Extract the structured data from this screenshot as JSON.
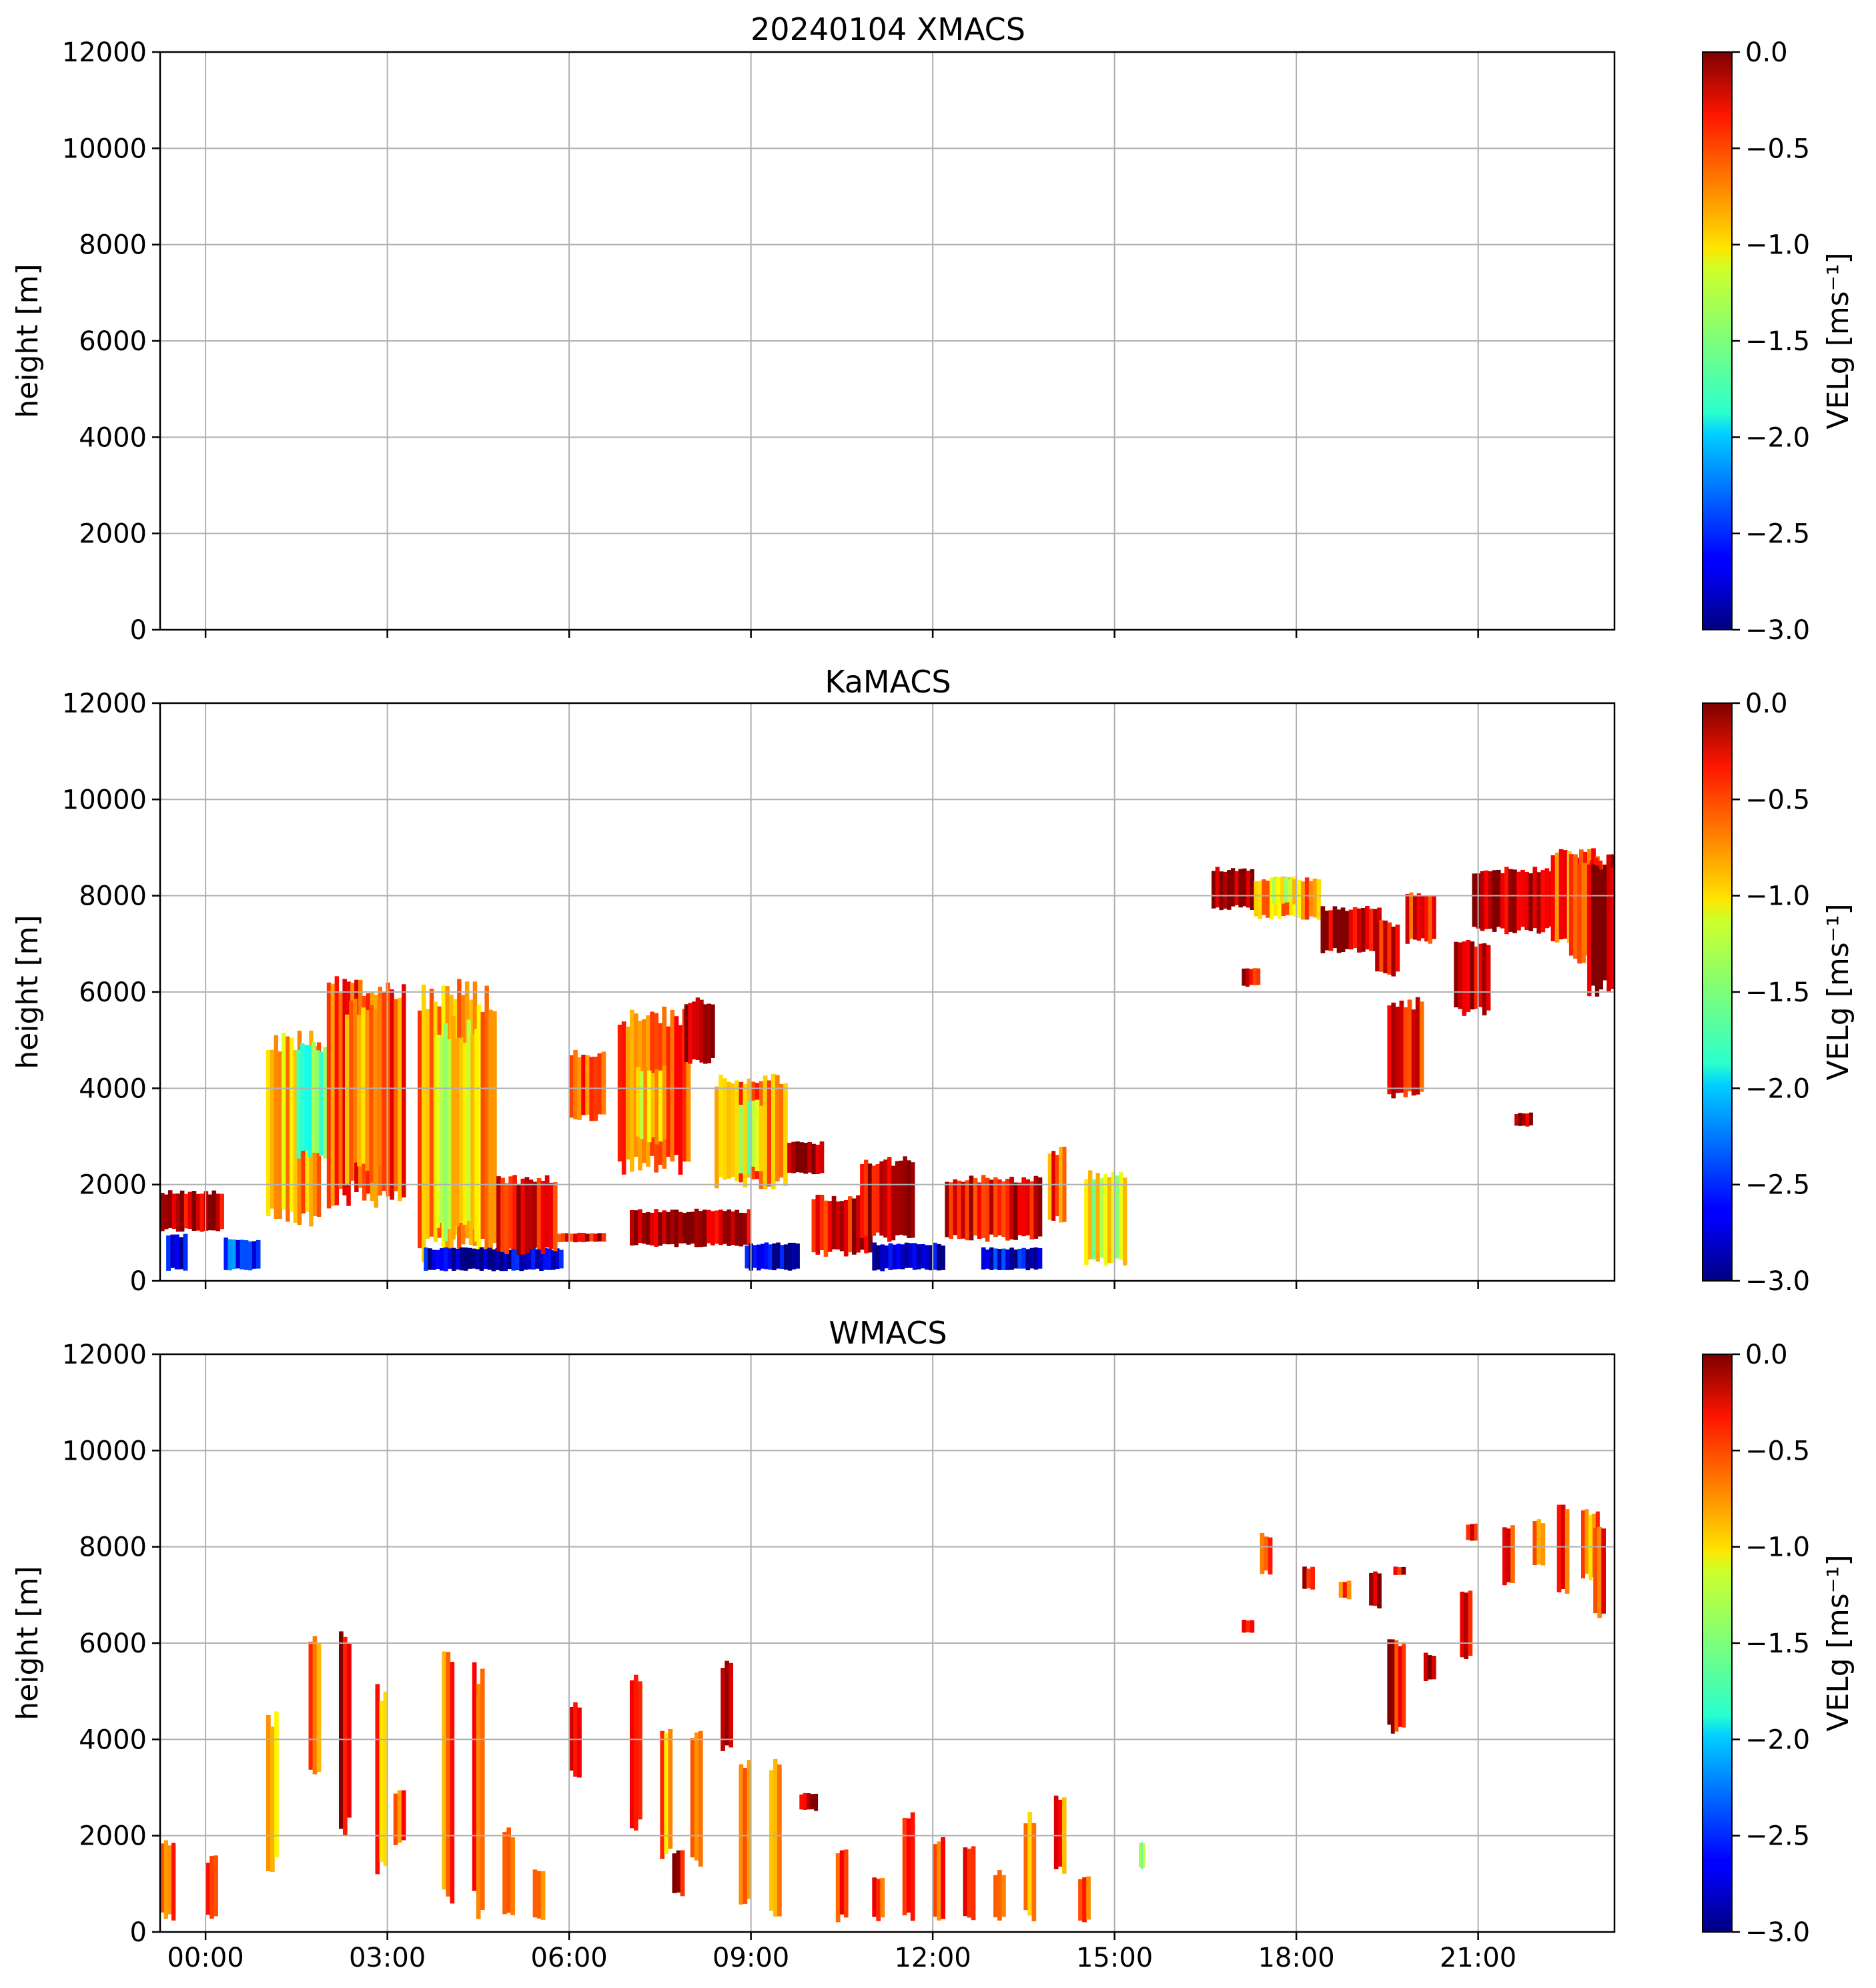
{
  "figure": {
    "colormap": "jet",
    "panels": [
      {
        "title": "20240104 XMACS"
      },
      {
        "title": "KaMACS"
      },
      {
        "title": "WMACS"
      }
    ],
    "colorbar_label": "VELg [ms⁻¹]"
  },
  "chart_data": [
    {
      "type": "heatmap",
      "title": "20240104 XMACS",
      "xlabel": "",
      "ylabel": "height [m]",
      "x_ticks": [
        "00:00",
        "03:00",
        "06:00",
        "09:00",
        "12:00",
        "15:00",
        "18:00",
        "21:00"
      ],
      "x_tick_labels_shown": false,
      "xlim_hours": [
        -0.75,
        23.25
      ],
      "y_ticks": [
        0,
        2000,
        4000,
        6000,
        8000,
        10000,
        12000
      ],
      "ylim": [
        0,
        12000
      ],
      "grid": true,
      "colorbar": {
        "label": "VELg [ms⁻¹]",
        "range": [
          -3.0,
          0.0
        ],
        "ticks": [
          "0.0",
          "−0.5",
          "−1.0",
          "−1.5",
          "−2.0",
          "−2.5",
          "−3.0"
        ]
      },
      "regions": []
    },
    {
      "type": "heatmap",
      "title": "KaMACS",
      "xlabel": "",
      "ylabel": "height [m]",
      "x_ticks": [
        "00:00",
        "03:00",
        "06:00",
        "09:00",
        "12:00",
        "15:00",
        "18:00",
        "21:00"
      ],
      "x_tick_labels_shown": false,
      "xlim_hours": [
        -0.75,
        23.25
      ],
      "y_ticks": [
        0,
        2000,
        4000,
        6000,
        8000,
        10000,
        12000
      ],
      "ylim": [
        0,
        12000
      ],
      "grid": true,
      "colorbar": {
        "label": "VELg [ms⁻¹]",
        "range": [
          -3.0,
          0.0
        ],
        "ticks": [
          "0.0",
          "−0.5",
          "−1.0",
          "−1.5",
          "−2.0",
          "−2.5",
          "−3.0"
        ]
      },
      "regions": [
        {
          "t0": -0.75,
          "t1": 0.3,
          "h0": 1000,
          "h1": 1900,
          "v": -0.2
        },
        {
          "t0": -0.65,
          "t1": -0.3,
          "h0": 200,
          "h1": 1000,
          "v": -2.6
        },
        {
          "t0": 0.3,
          "t1": 0.9,
          "h0": 200,
          "h1": 900,
          "v": -2.4
        },
        {
          "t0": 1.0,
          "t1": 1.9,
          "h0": 1000,
          "h1": 5200,
          "v": -0.9
        },
        {
          "t0": 1.5,
          "t1": 2.0,
          "h0": 2500,
          "h1": 5000,
          "v": -1.7
        },
        {
          "t0": 2.0,
          "t1": 3.3,
          "h0": 1500,
          "h1": 6400,
          "v": -0.6
        },
        {
          "t0": 2.3,
          "t1": 2.9,
          "h0": 2000,
          "h1": 6000,
          "v": -0.9
        },
        {
          "t0": 3.5,
          "t1": 4.8,
          "h0": 300,
          "h1": 6300,
          "v": -0.8
        },
        {
          "t0": 3.8,
          "t1": 4.5,
          "h0": 800,
          "h1": 5500,
          "v": -1.2
        },
        {
          "t0": 3.6,
          "t1": 5.9,
          "h0": 200,
          "h1": 700,
          "v": -2.8
        },
        {
          "t0": 4.8,
          "t1": 5.8,
          "h0": 500,
          "h1": 2200,
          "v": -0.3
        },
        {
          "t0": 5.8,
          "t1": 6.6,
          "h0": 800,
          "h1": 1000,
          "v": -0.3
        },
        {
          "t0": 6.0,
          "t1": 6.6,
          "h0": 3300,
          "h1": 4800,
          "v": -0.6
        },
        {
          "t0": 6.8,
          "t1": 8.0,
          "h0": 2200,
          "h1": 5700,
          "v": -0.7
        },
        {
          "t0": 7.1,
          "t1": 7.6,
          "h0": 2800,
          "h1": 4500,
          "v": -1.1
        },
        {
          "t0": 7.9,
          "t1": 8.4,
          "h0": 4500,
          "h1": 5900,
          "v": -0.2
        },
        {
          "t0": 7.0,
          "t1": 9.0,
          "h0": 700,
          "h1": 1500,
          "v": -0.1
        },
        {
          "t0": 8.4,
          "t1": 9.6,
          "h0": 1900,
          "h1": 4300,
          "v": -0.7
        },
        {
          "t0": 8.8,
          "t1": 9.2,
          "h0": 2200,
          "h1": 3800,
          "v": -1.3
        },
        {
          "t0": 9.6,
          "t1": 10.2,
          "h0": 2200,
          "h1": 2900,
          "v": -0.1
        },
        {
          "t0": 8.9,
          "t1": 9.8,
          "h0": 200,
          "h1": 800,
          "v": -2.8
        },
        {
          "t0": 10.0,
          "t1": 11.0,
          "h0": 500,
          "h1": 1800,
          "v": -0.3
        },
        {
          "t0": 10.8,
          "t1": 11.7,
          "h0": 800,
          "h1": 2600,
          "v": -0.2
        },
        {
          "t0": 11.0,
          "t1": 12.2,
          "h0": 200,
          "h1": 800,
          "v": -2.8
        },
        {
          "t0": 12.2,
          "t1": 13.8,
          "h0": 800,
          "h1": 2200,
          "v": -0.3
        },
        {
          "t0": 12.8,
          "t1": 13.8,
          "h0": 200,
          "h1": 700,
          "v": -2.7
        },
        {
          "t0": 13.9,
          "t1": 14.2,
          "h0": 1200,
          "h1": 2800,
          "v": -0.6
        },
        {
          "t0": 14.5,
          "t1": 15.2,
          "h0": 300,
          "h1": 2300,
          "v": -1.2
        },
        {
          "t0": 16.6,
          "t1": 17.3,
          "h0": 7700,
          "h1": 8600,
          "v": -0.1
        },
        {
          "t0": 17.3,
          "t1": 18.4,
          "h0": 7500,
          "h1": 8400,
          "v": -0.8
        },
        {
          "t0": 17.6,
          "t1": 18.0,
          "h0": 7800,
          "h1": 8400,
          "v": -1.1
        },
        {
          "t0": 18.4,
          "t1": 19.4,
          "h0": 6800,
          "h1": 7800,
          "v": -0.2
        },
        {
          "t0": 17.1,
          "t1": 17.4,
          "h0": 6100,
          "h1": 6500,
          "v": -0.3
        },
        {
          "t0": 19.3,
          "t1": 19.7,
          "h0": 6300,
          "h1": 7500,
          "v": -0.3
        },
        {
          "t0": 19.8,
          "t1": 20.3,
          "h0": 7000,
          "h1": 8100,
          "v": -0.4
        },
        {
          "t0": 19.5,
          "t1": 20.1,
          "h0": 3700,
          "h1": 5900,
          "v": -0.4
        },
        {
          "t0": 20.6,
          "t1": 21.2,
          "h0": 5500,
          "h1": 7100,
          "v": -0.2
        },
        {
          "t0": 20.9,
          "t1": 22.3,
          "h0": 7200,
          "h1": 8600,
          "v": -0.2
        },
        {
          "t0": 22.2,
          "t1": 23.0,
          "h0": 7000,
          "h1": 9000,
          "v": -0.6
        },
        {
          "t0": 22.5,
          "t1": 23.25,
          "h0": 6500,
          "h1": 8900,
          "v": -0.4
        },
        {
          "t0": 22.8,
          "t1": 23.25,
          "h0": 5900,
          "h1": 8900,
          "v": -0.1
        },
        {
          "t0": 21.6,
          "t1": 21.9,
          "h0": 3200,
          "h1": 3500,
          "v": -0.2
        }
      ]
    },
    {
      "type": "heatmap",
      "title": "WMACS",
      "xlabel": "",
      "ylabel": "height [m]",
      "x_ticks": [
        "00:00",
        "03:00",
        "06:00",
        "09:00",
        "12:00",
        "15:00",
        "18:00",
        "21:00"
      ],
      "x_tick_labels_shown": true,
      "xlim_hours": [
        -0.75,
        23.25
      ],
      "y_ticks": [
        0,
        2000,
        4000,
        6000,
        8000,
        10000,
        12000
      ],
      "ylim": [
        0,
        12000
      ],
      "grid": true,
      "colorbar": {
        "label": "VELg [ms⁻¹]",
        "range": [
          -3.0,
          0.0
        ],
        "ticks": [
          "0.0",
          "−0.5",
          "−1.0",
          "−1.5",
          "−2.0",
          "−2.5",
          "−3.0"
        ]
      },
      "regions": [
        {
          "t0": -0.75,
          "t1": -0.5,
          "h0": 200,
          "h1": 2000,
          "v": -0.5
        },
        {
          "t0": 0.0,
          "t1": 0.2,
          "h0": 200,
          "h1": 1600,
          "v": -0.4
        },
        {
          "t0": 1.0,
          "t1": 1.2,
          "h0": 1200,
          "h1": 4600,
          "v": -1.0
        },
        {
          "t0": 1.7,
          "t1": 1.9,
          "h0": 3000,
          "h1": 6200,
          "v": -0.7
        },
        {
          "t0": 2.2,
          "t1": 2.4,
          "h0": 2000,
          "h1": 6300,
          "v": -0.2
        },
        {
          "t0": 2.8,
          "t1": 3.0,
          "h0": 1200,
          "h1": 5200,
          "v": -0.7
        },
        {
          "t0": 3.1,
          "t1": 3.3,
          "h0": 1800,
          "h1": 3000,
          "v": -0.6
        },
        {
          "t0": 3.9,
          "t1": 4.1,
          "h0": 200,
          "h1": 6300,
          "v": -0.7
        },
        {
          "t0": 4.4,
          "t1": 4.6,
          "h0": 200,
          "h1": 5800,
          "v": -0.6
        },
        {
          "t0": 4.9,
          "t1": 5.1,
          "h0": 200,
          "h1": 2200,
          "v": -0.5
        },
        {
          "t0": 5.4,
          "t1": 5.6,
          "h0": 200,
          "h1": 1400,
          "v": -0.5
        },
        {
          "t0": 6.0,
          "t1": 6.2,
          "h0": 3200,
          "h1": 4800,
          "v": -0.3
        },
        {
          "t0": 7.0,
          "t1": 7.2,
          "h0": 2100,
          "h1": 5600,
          "v": -0.6
        },
        {
          "t0": 7.5,
          "t1": 7.7,
          "h0": 1500,
          "h1": 4300,
          "v": -0.8
        },
        {
          "t0": 7.7,
          "t1": 7.9,
          "h0": 700,
          "h1": 1700,
          "v": -0.2
        },
        {
          "t0": 8.0,
          "t1": 8.2,
          "h0": 1300,
          "h1": 4200,
          "v": -0.7
        },
        {
          "t0": 8.5,
          "t1": 8.7,
          "h0": 3700,
          "h1": 5700,
          "v": -0.3
        },
        {
          "t0": 8.8,
          "t1": 9.0,
          "h0": 500,
          "h1": 3600,
          "v": -0.5
        },
        {
          "t0": 9.3,
          "t1": 9.5,
          "h0": 200,
          "h1": 3600,
          "v": -0.9
        },
        {
          "t0": 9.8,
          "t1": 10.1,
          "h0": 2500,
          "h1": 2900,
          "v": -0.2
        },
        {
          "t0": 10.4,
          "t1": 10.6,
          "h0": 200,
          "h1": 1800,
          "v": -0.4
        },
        {
          "t0": 11.0,
          "t1": 11.2,
          "h0": 200,
          "h1": 1200,
          "v": -0.6
        },
        {
          "t0": 11.5,
          "t1": 11.7,
          "h0": 200,
          "h1": 2500,
          "v": -0.6
        },
        {
          "t0": 12.0,
          "t1": 12.2,
          "h0": 200,
          "h1": 2000,
          "v": -0.6
        },
        {
          "t0": 12.5,
          "t1": 12.7,
          "h0": 200,
          "h1": 1900,
          "v": -0.5
        },
        {
          "t0": 13.0,
          "t1": 13.2,
          "h0": 200,
          "h1": 1300,
          "v": -0.6
        },
        {
          "t0": 13.5,
          "t1": 13.7,
          "h0": 200,
          "h1": 2500,
          "v": -0.9
        },
        {
          "t0": 14.0,
          "t1": 14.2,
          "h0": 1200,
          "h1": 2900,
          "v": -0.6
        },
        {
          "t0": 14.4,
          "t1": 14.6,
          "h0": 200,
          "h1": 1200,
          "v": -0.6
        },
        {
          "t0": 15.4,
          "t1": 15.5,
          "h0": 1300,
          "h1": 1900,
          "v": -1.3
        },
        {
          "t0": 17.1,
          "t1": 17.3,
          "h0": 6200,
          "h1": 6500,
          "v": -0.2
        },
        {
          "t0": 17.4,
          "t1": 17.6,
          "h0": 7400,
          "h1": 8300,
          "v": -0.5
        },
        {
          "t0": 18.1,
          "t1": 18.3,
          "h0": 7100,
          "h1": 7600,
          "v": -0.4
        },
        {
          "t0": 18.7,
          "t1": 18.9,
          "h0": 6900,
          "h1": 7300,
          "v": -0.5
        },
        {
          "t0": 19.2,
          "t1": 19.4,
          "h0": 6700,
          "h1": 7500,
          "v": -0.2
        },
        {
          "t0": 19.5,
          "t1": 19.8,
          "h0": 4100,
          "h1": 6100,
          "v": -0.3
        },
        {
          "t0": 19.6,
          "t1": 19.8,
          "h0": 7400,
          "h1": 7600,
          "v": -0.3
        },
        {
          "t0": 20.1,
          "t1": 20.3,
          "h0": 5200,
          "h1": 5800,
          "v": -0.2
        },
        {
          "t0": 20.7,
          "t1": 20.9,
          "h0": 5600,
          "h1": 7200,
          "v": -0.3
        },
        {
          "t0": 20.8,
          "t1": 21.0,
          "h0": 8100,
          "h1": 8500,
          "v": -0.3
        },
        {
          "t0": 21.4,
          "t1": 21.6,
          "h0": 7200,
          "h1": 8500,
          "v": -0.4
        },
        {
          "t0": 21.9,
          "t1": 22.1,
          "h0": 7600,
          "h1": 8600,
          "v": -0.6
        },
        {
          "t0": 22.3,
          "t1": 22.5,
          "h0": 7000,
          "h1": 8900,
          "v": -0.5
        },
        {
          "t0": 22.7,
          "t1": 23.0,
          "h0": 7300,
          "h1": 8800,
          "v": -0.8
        },
        {
          "t0": 22.9,
          "t1": 23.1,
          "h0": 6500,
          "h1": 8600,
          "v": -0.5
        }
      ]
    }
  ]
}
